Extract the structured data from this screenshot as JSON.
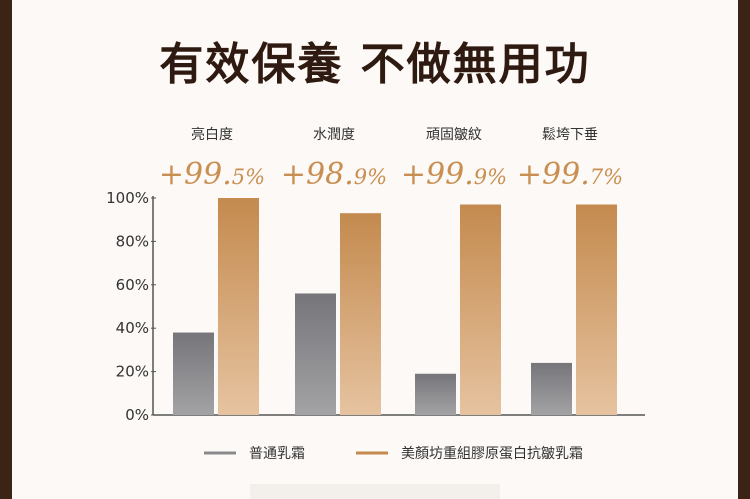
{
  "headline": "有效保養 不做無用功",
  "colors": {
    "background": "#3b2316",
    "panel": "#fcf9f6",
    "headline": "#2e1a10",
    "accent_text": "#c98f52",
    "series_regular": "#8a8a8c",
    "series_product": "#c48a4e"
  },
  "chart_data": {
    "type": "bar",
    "categories": [
      "亮白度",
      "水潤度",
      "頑固皺紋",
      "鬆垮下垂"
    ],
    "highlight_labels": [
      {
        "main": "+99.",
        "small": "5%"
      },
      {
        "main": "+98.",
        "small": "9%"
      },
      {
        "main": "+99.",
        "small": "9%"
      },
      {
        "main": "+99.",
        "small": "7%"
      }
    ],
    "series": [
      {
        "name": "普通乳霜",
        "values": [
          38,
          56,
          19,
          24
        ]
      },
      {
        "name": "美顏坊重組膠原蛋白抗皺乳霜",
        "values": [
          100,
          93,
          97,
          97
        ]
      }
    ],
    "y_ticks": [
      "0%",
      "20%",
      "40%",
      "60%",
      "80%",
      "100%"
    ],
    "ylim": [
      0,
      100
    ],
    "grid": false,
    "legend_position": "bottom"
  }
}
